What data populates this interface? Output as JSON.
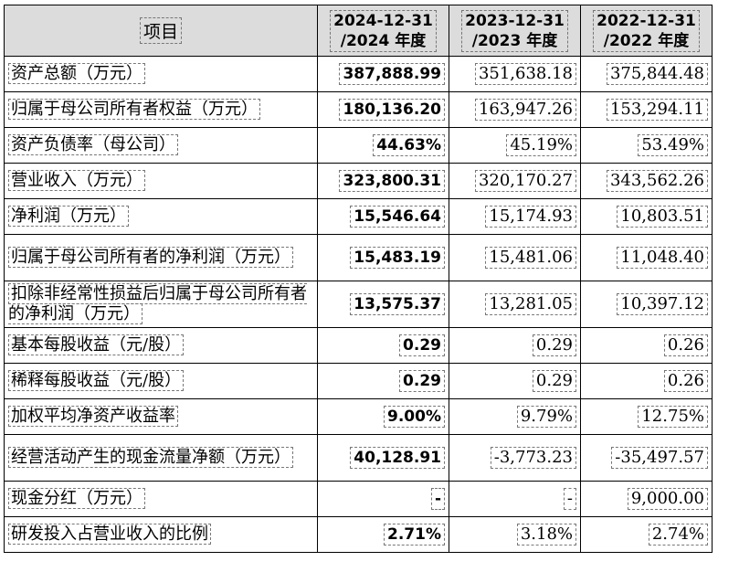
{
  "table": {
    "header": {
      "item": "项目",
      "cols": [
        {
          "line1": "2024-12-31",
          "line2": "/2024 年度"
        },
        {
          "line1": "2023-12-31",
          "line2": "/2023 年度"
        },
        {
          "line1": "2022-12-31",
          "line2": "/2022 年度"
        }
      ]
    },
    "rows": [
      {
        "label": "资产总额（万元）",
        "v2024": "387,888.99",
        "v2023": "351,638.18",
        "v2022": "375,844.48"
      },
      {
        "label": "归属于母公司所有者权益（万元）",
        "v2024": "180,136.20",
        "v2023": "163,947.26",
        "v2022": "153,294.11"
      },
      {
        "label": "资产负债率（母公司）",
        "v2024": "44.63%",
        "v2023": "45.19%",
        "v2022": "53.49%"
      },
      {
        "label": "营业收入（万元）",
        "v2024": "323,800.31",
        "v2023": "320,170.27",
        "v2022": "343,562.26"
      },
      {
        "label": "净利润（万元）",
        "v2024": "15,546.64",
        "v2023": "15,174.93",
        "v2022": "10,803.51"
      },
      {
        "label": "归属于母公司所有者的净利润（万元）",
        "v2024": "15,483.19",
        "v2023": "15,481.06",
        "v2022": "11,048.40"
      },
      {
        "label": "扣除非经常性损益后归属于母公司所有者的净利润（万元）",
        "v2024": "13,575.37",
        "v2023": "13,281.05",
        "v2022": "10,397.12"
      },
      {
        "label": "基本每股收益（元/股）",
        "v2024": "0.29",
        "v2023": "0.29",
        "v2022": "0.26"
      },
      {
        "label": "稀释每股收益（元/股）",
        "v2024": "0.29",
        "v2023": "0.29",
        "v2022": "0.26"
      },
      {
        "label": "加权平均净资产收益率",
        "v2024": "9.00%",
        "v2023": "9.79%",
        "v2022": "12.75%"
      },
      {
        "label": "经营活动产生的现金流量净额（万元）",
        "v2024": "40,128.91",
        "v2023": "-3,773.23",
        "v2022": "-35,497.57"
      },
      {
        "label": "现金分红（万元）",
        "v2024": "-",
        "v2023": "-",
        "v2022": "9,000.00"
      },
      {
        "label": "研发投入占营业收入的比例",
        "v2024": "2.71%",
        "v2023": "3.18%",
        "v2022": "2.74%"
      }
    ]
  }
}
